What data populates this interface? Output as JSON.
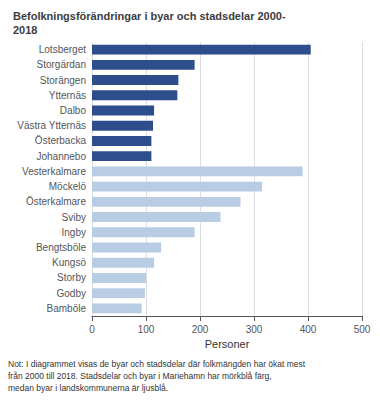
{
  "chart_data": {
    "type": "bar",
    "orientation": "horizontal",
    "title": "Befolkningsförändringar i byar och stadsdelar 2000-\n2018",
    "x_label": "Personer",
    "categories": [
      "Lotsberget",
      "Storgärdan",
      "Storängen",
      "Ytternäs",
      "Dalbo",
      "Västra Ytternäs",
      "Österbacka",
      "Johannebo",
      "Vesterkalmare",
      "Möckelö",
      "Österkalmare",
      "Sviby",
      "Ingby",
      "Bengtsböle",
      "Kungsö",
      "Storby",
      "Godby",
      "Bamböle"
    ],
    "values": [
      405,
      190,
      160,
      158,
      115,
      113,
      110,
      110,
      390,
      315,
      275,
      238,
      190,
      128,
      115,
      100,
      98,
      92
    ],
    "colors": [
      "#2e4d8c",
      "#2e4d8c",
      "#2e4d8c",
      "#2e4d8c",
      "#2e4d8c",
      "#2e4d8c",
      "#2e4d8c",
      "#2e4d8c",
      "#b8cce4",
      "#b8cce4",
      "#b8cce4",
      "#b8cce4",
      "#b8cce4",
      "#b8cce4",
      "#b8cce4",
      "#b8cce4",
      "#b8cce4",
      "#b8cce4"
    ],
    "xlim": [
      0,
      500
    ],
    "xticks": [
      0,
      100,
      200,
      300,
      400,
      500
    ],
    "grid": true,
    "annotations": [
      "Not: I diagrammet visas de byar och stadsdelar där folkmängden har ökat mest",
      "från 2000 till 2018. Stadsdelar och byar i Mariehamn har mörkblå färg,",
      "medan byar i landskommunerna är ljusblå."
    ]
  }
}
